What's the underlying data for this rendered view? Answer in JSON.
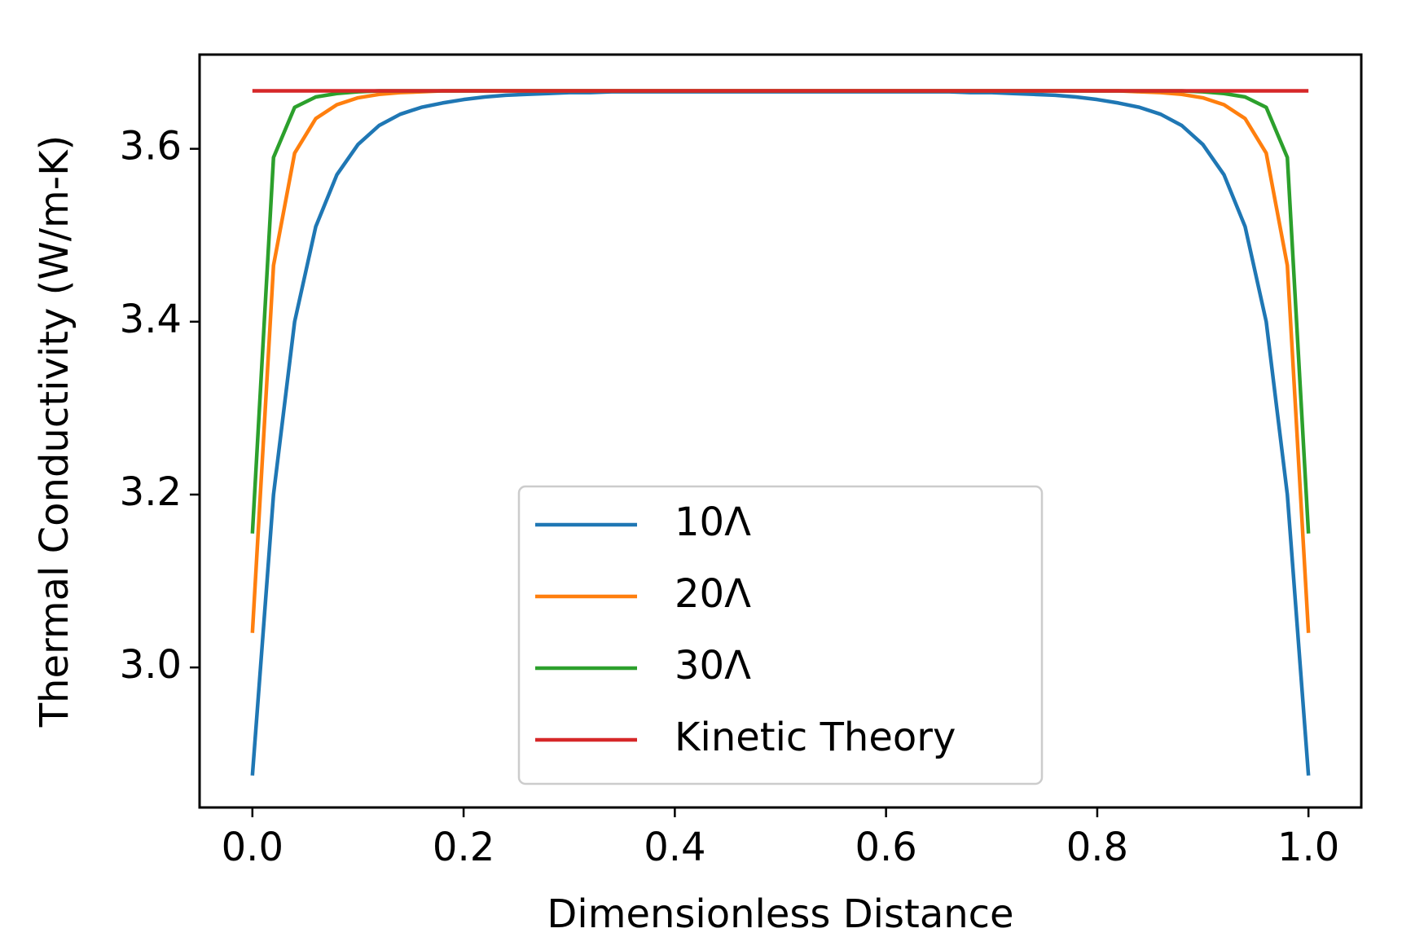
{
  "chart_data": {
    "type": "line",
    "xlabel": "Dimensionless Distance",
    "ylabel": "Thermal Conductivity (W/m-K)",
    "x": [
      0,
      0.02,
      0.04,
      0.06,
      0.08,
      0.1,
      0.12,
      0.14,
      0.16,
      0.18,
      0.2,
      0.22,
      0.24,
      0.26,
      0.28,
      0.3,
      0.32,
      0.34,
      0.36,
      0.38,
      0.4,
      0.42,
      0.44,
      0.46,
      0.48,
      0.5,
      0.52,
      0.54,
      0.56,
      0.58,
      0.6,
      0.62,
      0.64,
      0.66,
      0.68,
      0.7,
      0.72,
      0.74,
      0.76,
      0.78,
      0.8,
      0.82,
      0.84,
      0.86,
      0.88,
      0.9,
      0.92,
      0.94,
      0.96,
      0.98,
      1.0
    ],
    "series": [
      {
        "name": "10Λ",
        "color": "#1f77b4",
        "values": [
          2.875,
          3.2,
          3.4,
          3.51,
          3.57,
          3.605,
          3.627,
          3.64,
          3.648,
          3.653,
          3.657,
          3.66,
          3.662,
          3.663,
          3.664,
          3.665,
          3.665,
          3.666,
          3.666,
          3.666,
          3.666,
          3.666,
          3.666,
          3.666,
          3.666,
          3.666,
          3.666,
          3.666,
          3.666,
          3.666,
          3.666,
          3.666,
          3.666,
          3.666,
          3.665,
          3.665,
          3.664,
          3.663,
          3.662,
          3.66,
          3.657,
          3.653,
          3.648,
          3.64,
          3.627,
          3.605,
          3.57,
          3.51,
          3.4,
          3.2,
          2.875
        ]
      },
      {
        "name": "20Λ",
        "color": "#ff7f0e",
        "values": [
          3.04,
          3.465,
          3.595,
          3.635,
          3.651,
          3.659,
          3.663,
          3.665,
          3.666,
          3.667,
          3.667,
          3.667,
          3.667,
          3.667,
          3.667,
          3.667,
          3.667,
          3.667,
          3.667,
          3.667,
          3.667,
          3.667,
          3.667,
          3.667,
          3.667,
          3.667,
          3.667,
          3.667,
          3.667,
          3.667,
          3.667,
          3.667,
          3.667,
          3.667,
          3.667,
          3.667,
          3.667,
          3.667,
          3.667,
          3.667,
          3.667,
          3.667,
          3.666,
          3.665,
          3.663,
          3.659,
          3.651,
          3.635,
          3.595,
          3.465,
          3.04
        ]
      },
      {
        "name": "30Λ",
        "color": "#2ca02c",
        "values": [
          3.155,
          3.59,
          3.648,
          3.66,
          3.664,
          3.666,
          3.667,
          3.667,
          3.667,
          3.667,
          3.667,
          3.667,
          3.667,
          3.667,
          3.667,
          3.667,
          3.667,
          3.667,
          3.667,
          3.667,
          3.667,
          3.667,
          3.667,
          3.667,
          3.667,
          3.667,
          3.667,
          3.667,
          3.667,
          3.667,
          3.667,
          3.667,
          3.667,
          3.667,
          3.667,
          3.667,
          3.667,
          3.667,
          3.667,
          3.667,
          3.667,
          3.667,
          3.667,
          3.667,
          3.667,
          3.666,
          3.664,
          3.66,
          3.648,
          3.59,
          3.155
        ]
      },
      {
        "name": "Kinetic Theory",
        "color": "#d62728",
        "values": [
          3.667,
          3.667,
          3.667,
          3.667,
          3.667,
          3.667,
          3.667,
          3.667,
          3.667,
          3.667,
          3.667,
          3.667,
          3.667,
          3.667,
          3.667,
          3.667,
          3.667,
          3.667,
          3.667,
          3.667,
          3.667,
          3.667,
          3.667,
          3.667,
          3.667,
          3.667,
          3.667,
          3.667,
          3.667,
          3.667,
          3.667,
          3.667,
          3.667,
          3.667,
          3.667,
          3.667,
          3.667,
          3.667,
          3.667,
          3.667,
          3.667,
          3.667,
          3.667,
          3.667,
          3.667,
          3.667,
          3.667,
          3.667,
          3.667,
          3.667,
          3.667
        ]
      }
    ],
    "xlim": [
      -0.05,
      1.05
    ],
    "xticks": [
      {
        "value": 0,
        "label": "0.0"
      },
      0.2,
      0.4,
      0.6,
      0.8,
      {
        "value": 1,
        "label": "1.0"
      }
    ],
    "ylim": [
      2.838,
      3.709
    ],
    "yticks": [
      {
        "value": 3,
        "label": "3.0"
      },
      3.2,
      3.4,
      3.6
    ],
    "legend": "lower center",
    "grid": false
  }
}
